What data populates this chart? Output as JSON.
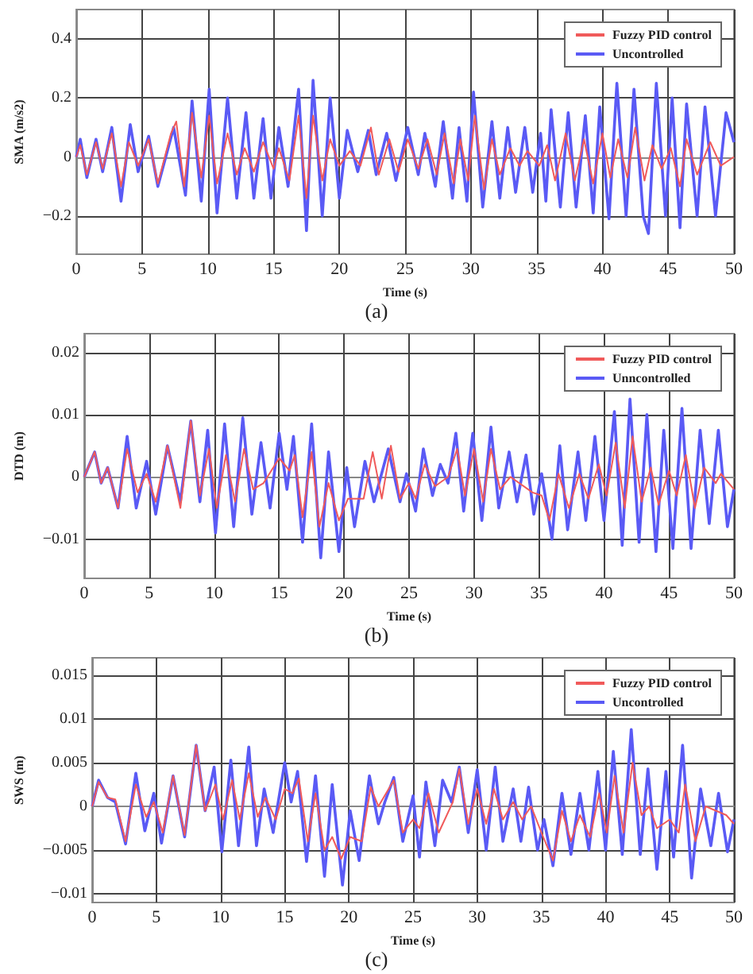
{
  "chart_data": [
    {
      "type": "line",
      "xlabel": "Time (s)",
      "ylabel": "SMA (m/s2)",
      "annotations": [
        "(a)"
      ],
      "xlim": [
        0,
        50
      ],
      "xticks": [
        0,
        5,
        10,
        15,
        20,
        25,
        30,
        35,
        40,
        45,
        50
      ],
      "ylim": [
        -0.33,
        0.5
      ],
      "yticks": [
        -0.2,
        0,
        0.2,
        0.4
      ],
      "grid": true,
      "legend": "top right",
      "marker": "none",
      "line_style": "solid",
      "series": [
        {
          "name": "Fuzzy PID control",
          "color": "#f05a5a",
          "x": [
            0,
            0.3,
            0.8,
            1.5,
            2,
            2.7,
            3.4,
            4,
            4.7,
            5.5,
            6.2,
            7.2,
            7.6,
            8.2,
            8.8,
            9.5,
            10.1,
            10.7,
            11.5,
            12.2,
            12.8,
            13.5,
            14.2,
            15,
            15.4,
            16.2,
            16.9,
            17.5,
            18,
            18.7,
            19.3,
            20,
            20.8,
            21.6,
            22.4,
            23,
            23.8,
            24.5,
            25.2,
            26,
            26.7,
            27.4,
            28,
            28.7,
            29.2,
            29.8,
            30.3,
            31,
            31.6,
            32.2,
            33,
            33.7,
            34.3,
            35.2,
            35.8,
            36.4,
            37.2,
            37.9,
            38.6,
            39.3,
            40,
            40.6,
            41.2,
            41.9,
            42.5,
            43.2,
            43.8,
            44.5,
            45.2,
            45.9,
            46.4,
            47.2,
            48.2,
            49,
            50
          ],
          "values": [
            0,
            0.04,
            -0.06,
            0.05,
            -0.04,
            0.08,
            -0.1,
            0.05,
            -0.03,
            0.06,
            -0.09,
            0.08,
            0.12,
            -0.1,
            0.15,
            -0.07,
            0.14,
            -0.09,
            0.08,
            -0.06,
            0.03,
            -0.05,
            0.05,
            -0.04,
            0.03,
            -0.08,
            0.14,
            -0.14,
            0.14,
            -0.08,
            0.06,
            -0.03,
            0.02,
            -0.03,
            0.1,
            -0.06,
            0.06,
            -0.05,
            0.06,
            -0.04,
            0.06,
            -0.06,
            0.08,
            -0.09,
            0.06,
            -0.08,
            0.14,
            -0.11,
            0.06,
            -0.06,
            0.03,
            -0.03,
            0.02,
            -0.03,
            0.04,
            -0.08,
            0.08,
            -0.08,
            0.06,
            -0.09,
            0.08,
            -0.07,
            0.06,
            -0.07,
            0.1,
            -0.08,
            0.04,
            -0.04,
            0.03,
            -0.1,
            0.06,
            -0.06,
            0.05,
            -0.03,
            0
          ]
        },
        {
          "name": "Uncontrolled",
          "color": "#5a5af5",
          "x": [
            0,
            0.3,
            0.8,
            1.5,
            2,
            2.7,
            3.4,
            4.1,
            4.7,
            5.5,
            6.2,
            7.4,
            8.3,
            8.8,
            9.5,
            10.1,
            10.7,
            11.5,
            12.2,
            12.9,
            13.5,
            14.2,
            14.8,
            15.4,
            16.1,
            16.9,
            17.5,
            18,
            18.7,
            19.3,
            20,
            20.6,
            21.4,
            22.2,
            22.8,
            23.6,
            24.3,
            25.2,
            26,
            26.5,
            27.3,
            27.9,
            28.6,
            29.1,
            29.7,
            30.2,
            30.9,
            31.6,
            32.2,
            32.8,
            33.4,
            34.1,
            34.7,
            35.3,
            35.7,
            36.1,
            36.8,
            37.4,
            38,
            38.7,
            39.3,
            39.8,
            40.5,
            41.1,
            41.8,
            42.4,
            43.1,
            43.5,
            44.1,
            44.8,
            45.3,
            45.9,
            46.4,
            47.2,
            47.8,
            48.6,
            49.4,
            50
          ],
          "values": [
            0,
            0.06,
            -0.07,
            0.06,
            -0.05,
            0.1,
            -0.15,
            0.11,
            -0.05,
            0.07,
            -0.1,
            0.1,
            -0.13,
            0.19,
            -0.15,
            0.23,
            -0.19,
            0.2,
            -0.14,
            0.15,
            -0.14,
            0.13,
            -0.14,
            0.1,
            -0.1,
            0.23,
            -0.25,
            0.26,
            -0.2,
            0.2,
            -0.14,
            0.09,
            -0.05,
            0.09,
            -0.06,
            0.08,
            -0.08,
            0.1,
            -0.06,
            0.08,
            -0.1,
            0.12,
            -0.14,
            0.1,
            -0.15,
            0.22,
            -0.17,
            0.12,
            -0.14,
            0.1,
            -0.12,
            0.1,
            -0.12,
            0.08,
            -0.15,
            0.16,
            -0.17,
            0.15,
            -0.17,
            0.14,
            -0.19,
            0.17,
            -0.21,
            0.25,
            -0.2,
            0.23,
            -0.2,
            -0.26,
            0.25,
            -0.2,
            0.2,
            -0.24,
            0.18,
            -0.2,
            0.17,
            -0.2,
            0.15,
            0.05
          ]
        }
      ]
    },
    {
      "type": "line",
      "xlabel": "Time (s)",
      "ylabel": "DTD (m)",
      "annotations": [
        "(b)"
      ],
      "xlim": [
        0,
        50
      ],
      "xticks": [
        0,
        5,
        10,
        15,
        20,
        25,
        30,
        35,
        40,
        45,
        50
      ],
      "ylim": [
        -0.0163,
        0.023
      ],
      "yticks": [
        -0.01,
        0,
        0.01,
        0.02
      ],
      "grid": true,
      "legend": "top right",
      "marker": "none",
      "line_style": "solid",
      "series": [
        {
          "name": "Fuzzy PID control",
          "color": "#f05a5a",
          "x": [
            0,
            0.8,
            1.3,
            1.8,
            2.6,
            3.3,
            4.1,
            4.8,
            5.5,
            6.4,
            7.4,
            8.2,
            8.9,
            9.6,
            10.2,
            10.9,
            11.6,
            12.3,
            13,
            13.8,
            15,
            15.8,
            16.2,
            16.8,
            17.5,
            18.1,
            18.8,
            19.6,
            20.3,
            21.5,
            22.2,
            22.9,
            23.6,
            24.3,
            25,
            25.5,
            26.2,
            27,
            28,
            28.7,
            29.3,
            30,
            30.7,
            31.3,
            32,
            32.8,
            34.5,
            35.2,
            35.8,
            36.5,
            37.3,
            38.1,
            38.8,
            39.6,
            40.2,
            40.9,
            41.6,
            42.2,
            42.9,
            43.6,
            44.2,
            45,
            45.6,
            46.3,
            47,
            47.7,
            48.6,
            49,
            50
          ],
          "values": [
            0,
            0.004,
            -0.001,
            0.0015,
            -0.005,
            0.0045,
            -0.0025,
            0.0005,
            -0.004,
            0.005,
            -0.005,
            0.009,
            -0.003,
            0.0045,
            -0.005,
            0.0035,
            -0.004,
            0.0045,
            -0.002,
            -0.001,
            0.003,
            0.001,
            0.0035,
            -0.0065,
            0.004,
            -0.008,
            -0.001,
            -0.007,
            -0.0035,
            -0.0035,
            0.004,
            -0.0035,
            0.005,
            -0.0035,
            -0.001,
            -0.0035,
            0.002,
            -0.0015,
            0,
            0.0045,
            -0.003,
            0.0045,
            -0.004,
            0.0045,
            -0.002,
            0,
            -0.0025,
            -0.003,
            -0.007,
            0.0005,
            -0.005,
            0.0005,
            -0.0035,
            0.002,
            -0.003,
            0.0055,
            -0.005,
            0.0065,
            -0.004,
            0.0015,
            -0.0045,
            0.001,
            -0.003,
            0.0035,
            -0.005,
            0.0015,
            -0.001,
            0.0005,
            -0.002
          ]
        },
        {
          "name": "Unncontrolled",
          "color": "#5a5af5",
          "x": [
            0,
            0.8,
            1.3,
            1.8,
            2.6,
            3.3,
            4,
            4.8,
            5.5,
            6.4,
            7.4,
            8.2,
            8.9,
            9.5,
            10.1,
            10.8,
            11.5,
            12.2,
            12.9,
            13.6,
            14.3,
            15,
            15.6,
            16.1,
            16.8,
            17.5,
            18.2,
            18.8,
            19.6,
            20.2,
            20.8,
            21.6,
            22.3,
            23.4,
            24.3,
            24.8,
            25.5,
            26.1,
            26.8,
            27.4,
            28,
            28.6,
            29.2,
            29.9,
            30.6,
            31.3,
            31.9,
            32.7,
            33.3,
            34,
            34.6,
            35.2,
            36,
            36.6,
            37.2,
            38,
            38.6,
            39.3,
            40,
            40.8,
            41.4,
            42,
            42.7,
            43.3,
            44,
            44.6,
            45.3,
            46,
            46.7,
            47.4,
            48.1,
            48.8,
            49.5,
            50
          ],
          "values": [
            0,
            0.004,
            -0.001,
            0.0015,
            -0.005,
            0.0065,
            -0.005,
            0.0025,
            -0.006,
            0.005,
            -0.004,
            0.009,
            -0.004,
            0.0075,
            -0.009,
            0.0085,
            -0.008,
            0.0095,
            -0.006,
            0.0055,
            -0.005,
            0.007,
            -0.002,
            0.0065,
            -0.0105,
            0.0085,
            -0.013,
            0.004,
            -0.012,
            0.0015,
            -0.008,
            0.0025,
            -0.004,
            0.0045,
            -0.004,
            0.0005,
            -0.0055,
            0.0045,
            -0.003,
            0.002,
            -0.001,
            0.007,
            -0.0055,
            0.007,
            -0.007,
            0.008,
            -0.005,
            0.004,
            -0.004,
            0.0035,
            -0.006,
            0.0005,
            -0.01,
            0.005,
            -0.0085,
            0.004,
            -0.007,
            0.0065,
            -0.007,
            0.0105,
            -0.011,
            0.0125,
            -0.0105,
            0.01,
            -0.012,
            0.0075,
            -0.0115,
            0.011,
            -0.0115,
            0.0075,
            -0.0075,
            0.0075,
            -0.008,
            -0.002
          ]
        }
      ]
    },
    {
      "type": "line",
      "xlabel": "Time (s)",
      "ylabel": "SWS (m)",
      "annotations": [
        "(c)"
      ],
      "xlim": [
        0,
        50
      ],
      "xticks": [
        0,
        5,
        10,
        15,
        20,
        25,
        30,
        35,
        40,
        45,
        50
      ],
      "ylim": [
        -0.011,
        0.017
      ],
      "yticks": [
        -0.01,
        -0.005,
        0,
        0.005,
        0.01,
        0.015
      ],
      "grid": true,
      "legend": "top right",
      "marker": "none",
      "line_style": "solid",
      "series": [
        {
          "name": "Fuzzy PID control",
          "color": "#f05a5a",
          "x": [
            0,
            0.5,
            1.2,
            1.8,
            2.6,
            3.4,
            4.2,
            4.8,
            5.5,
            6.3,
            7.2,
            8.1,
            8.8,
            9.6,
            10.2,
            10.9,
            11.5,
            12.2,
            12.9,
            13.5,
            14.3,
            15,
            15.6,
            16.1,
            16.8,
            17.4,
            18.1,
            18.7,
            19.4,
            20.1,
            21,
            21.7,
            22.3,
            23.5,
            24.2,
            25,
            25.5,
            26.2,
            27,
            28.1,
            28.6,
            29.3,
            30,
            30.7,
            31.3,
            32,
            32.8,
            33.5,
            34.2,
            35,
            35.9,
            36.6,
            37.3,
            38,
            38.8,
            39.5,
            40.1,
            40.7,
            41.4,
            42.1,
            42.8,
            43.4,
            44,
            45,
            45.7,
            46.2,
            47,
            47.8,
            48.6,
            49.4,
            50
          ],
          "values": [
            0,
            0.0028,
            0.001,
            0.0008,
            -0.004,
            0.0025,
            -0.0012,
            0.0005,
            -0.003,
            0.0035,
            -0.0033,
            0.007,
            -0.0005,
            0.0025,
            -0.0015,
            0.003,
            -0.0015,
            0.0038,
            -0.0012,
            0.001,
            -0.0015,
            0.002,
            0.0015,
            0.0032,
            -0.004,
            0.0015,
            -0.005,
            -0.0035,
            -0.006,
            -0.0035,
            -0.004,
            0.0022,
            0,
            0.003,
            -0.003,
            -0.0015,
            -0.0025,
            0.0015,
            -0.003,
            0.0005,
            0.0043,
            -0.002,
            0.002,
            -0.002,
            0.002,
            -0.0015,
            0.0005,
            -0.0015,
            0,
            -0.003,
            -0.0062,
            -0.0005,
            -0.004,
            -0.001,
            -0.0035,
            0.0015,
            -0.003,
            0.0035,
            -0.003,
            0.005,
            -0.001,
            0,
            -0.0025,
            -0.0015,
            -0.003,
            0.0025,
            -0.004,
            0,
            -0.0005,
            -0.001,
            -0.002
          ]
        },
        {
          "name": "Uncontrolled",
          "color": "#5a5af5",
          "x": [
            0,
            0.5,
            1.2,
            1.8,
            2.6,
            3.4,
            4.1,
            4.8,
            5.4,
            6.3,
            7.2,
            8.1,
            8.8,
            9.5,
            10.1,
            10.8,
            11.4,
            12.2,
            12.8,
            13.4,
            14.1,
            15,
            15.5,
            16,
            16.7,
            17.4,
            18.1,
            18.7,
            19.5,
            20.1,
            20.8,
            21.6,
            22.3,
            22.8,
            23.5,
            24.2,
            25,
            25.5,
            26,
            26.7,
            27.3,
            28,
            28.6,
            29.3,
            30,
            30.7,
            31.4,
            32,
            32.8,
            33.4,
            34,
            34.7,
            35.2,
            35.9,
            36.6,
            37.3,
            38,
            38.7,
            39.4,
            40,
            40.6,
            41.3,
            42,
            42.7,
            43.3,
            44,
            44.7,
            45.3,
            46,
            46.7,
            47.4,
            48.2,
            48.8,
            49.5,
            50
          ],
          "values": [
            0,
            0.003,
            0.001,
            0.0005,
            -0.0043,
            0.0038,
            -0.0028,
            0.0015,
            -0.0042,
            0.0035,
            -0.0035,
            0.007,
            -0.0005,
            0.0045,
            -0.0052,
            0.0053,
            -0.0045,
            0.0068,
            -0.0045,
            0.002,
            -0.003,
            0.005,
            0.0005,
            0.004,
            -0.0063,
            0.0035,
            -0.008,
            0.0025,
            -0.009,
            -0.0005,
            -0.0062,
            0.0035,
            -0.002,
            0.0005,
            0.0033,
            -0.004,
            0.0012,
            -0.0058,
            0.0028,
            -0.0045,
            0.003,
            0.0005,
            0.0045,
            -0.003,
            0.0042,
            -0.005,
            0.0045,
            -0.004,
            0.002,
            -0.004,
            0.0022,
            -0.005,
            -0.0015,
            -0.0068,
            0.0015,
            -0.0055,
            0.0015,
            -0.005,
            0.004,
            -0.005,
            0.0063,
            -0.0055,
            0.0088,
            -0.0055,
            0.0043,
            -0.0072,
            0.004,
            -0.0058,
            0.007,
            -0.0082,
            0.002,
            -0.0045,
            0.0015,
            -0.0052,
            -0.0015
          ]
        }
      ]
    }
  ]
}
